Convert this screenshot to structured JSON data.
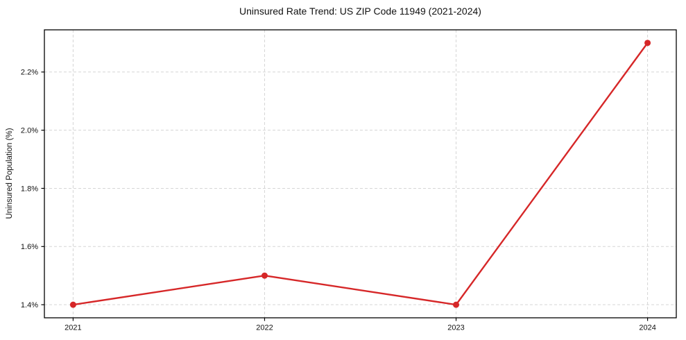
{
  "chart_data": {
    "type": "line",
    "title": "Uninsured Rate Trend: US ZIP Code 11949 (2021-2024)",
    "xlabel": "",
    "ylabel": "Uninsured Population (%)",
    "x": [
      2021,
      2022,
      2023,
      2024
    ],
    "series": [
      {
        "name": "Uninsured Population (%)",
        "values": [
          1.4,
          1.5,
          1.4,
          2.3
        ],
        "color": "#d62728"
      }
    ],
    "xticks": [
      2021,
      2022,
      2023,
      2024
    ],
    "xtick_labels": [
      "2021",
      "2022",
      "2023",
      "2024"
    ],
    "yticks": [
      1.4,
      1.6,
      1.8,
      2.0,
      2.2
    ],
    "ytick_labels": [
      "1.4%",
      "1.6%",
      "1.8%",
      "2.0%",
      "2.2%"
    ],
    "xlim": [
      2020.85,
      2024.15
    ],
    "ylim": [
      1.355,
      2.345
    ],
    "grid": true,
    "grid_style": "dashed",
    "grid_color": "#d5d5d5",
    "frame_color": "#000000",
    "background": "#ffffff",
    "legend_position": "none",
    "marker": "circle"
  }
}
